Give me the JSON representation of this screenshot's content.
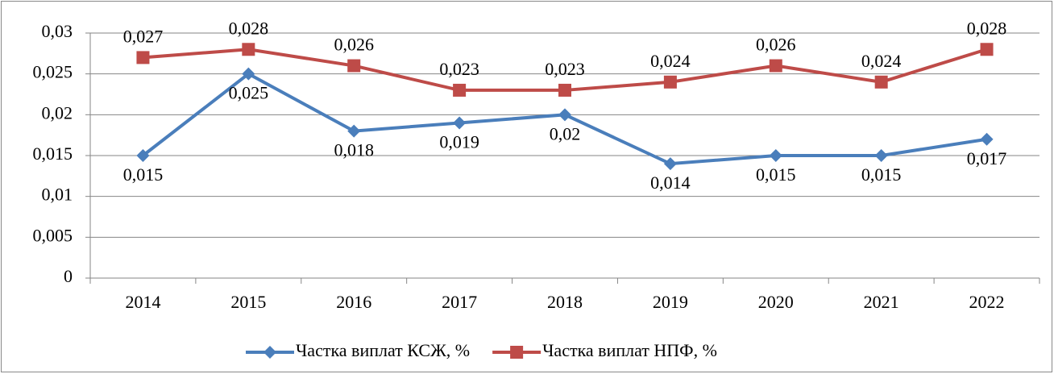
{
  "chart_data": {
    "type": "line",
    "categories": [
      "2014",
      "2015",
      "2016",
      "2017",
      "2018",
      "2019",
      "2020",
      "2021",
      "2022"
    ],
    "series": [
      {
        "name": "Частка виплат КСЖ, %",
        "color": "#4a7ebb",
        "marker": "diamond",
        "values": [
          0.015,
          0.025,
          0.018,
          0.019,
          0.02,
          0.014,
          0.015,
          0.015,
          0.017
        ],
        "value_labels": [
          "0,015",
          "0,025",
          "0,018",
          "0,019",
          "0,02",
          "0,014",
          "0,015",
          "0,015",
          "0,017"
        ]
      },
      {
        "name": "Частка виплат НПФ, %",
        "color": "#be4b48",
        "marker": "square",
        "values": [
          0.027,
          0.028,
          0.026,
          0.023,
          0.023,
          0.024,
          0.026,
          0.024,
          0.028
        ],
        "value_labels": [
          "0,027",
          "0,028",
          "0,026",
          "0,023",
          "0,023",
          "0,024",
          "0,026",
          "0,024",
          "0,028"
        ]
      }
    ],
    "ylim": [
      0,
      0.03
    ],
    "yticks": [
      0,
      {
        "value": 0.005,
        "label": "0,005"
      },
      {
        "value": 0.01,
        "label": "0,01"
      },
      {
        "value": 0.015,
        "label": "0,015"
      },
      {
        "value": 0.02,
        "label": "0,02"
      },
      {
        "value": 0.025,
        "label": "0,025"
      },
      {
        "value": 0.03,
        "label": "0,03"
      }
    ],
    "grid": true,
    "legend": "bottom"
  }
}
